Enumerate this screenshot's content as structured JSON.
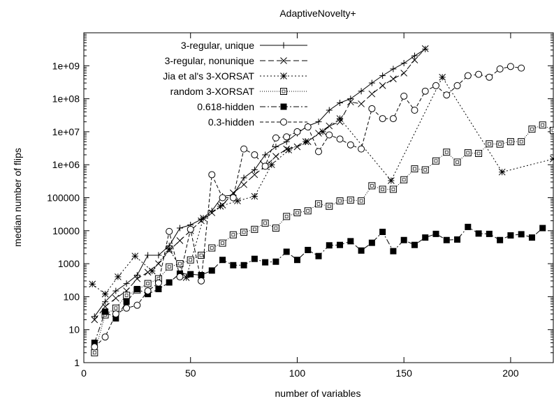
{
  "chart_data": {
    "type": "line",
    "title": "AdaptiveNovelty+",
    "xlabel": "number of variables",
    "ylabel": "median number of flips",
    "xlim": [
      0,
      220
    ],
    "ylim": [
      1,
      10000000000
    ],
    "yscale": "log",
    "grid": false,
    "legend_position": "top-left",
    "x_ticks": [
      0,
      50,
      100,
      150,
      200
    ],
    "x_tick_labels": [
      "0",
      "50",
      "100",
      "150",
      "200"
    ],
    "y_ticks": [
      1,
      10,
      100,
      1000,
      10000,
      100000,
      1000000,
      10000000,
      100000000,
      1000000000
    ],
    "y_tick_labels": [
      "1",
      "10",
      "100",
      "1000",
      "10000",
      "100000",
      "1e+06",
      "1e+07",
      "1e+08",
      "1e+09"
    ],
    "series": [
      {
        "name": "3-regular, unique",
        "marker": "plus",
        "dash": "",
        "points": [
          [
            5,
            25
          ],
          [
            10,
            70
          ],
          [
            15,
            150
          ],
          [
            20,
            250
          ],
          [
            25,
            450
          ],
          [
            30,
            1800
          ],
          [
            35,
            1800
          ],
          [
            40,
            3500
          ],
          [
            45,
            12000
          ],
          [
            50,
            15000
          ],
          [
            55,
            22000
          ],
          [
            60,
            40000
          ],
          [
            65,
            110000
          ],
          [
            70,
            120000
          ],
          [
            75,
            400000
          ],
          [
            80,
            700000
          ],
          [
            85,
            2000000
          ],
          [
            90,
            3500000
          ],
          [
            95,
            5000000
          ],
          [
            100,
            9000000
          ],
          [
            105,
            15000000
          ],
          [
            110,
            20000000
          ],
          [
            115,
            45000000
          ],
          [
            120,
            75000000
          ],
          [
            125,
            100000000
          ],
          [
            130,
            170000000
          ],
          [
            135,
            300000000
          ],
          [
            140,
            500000000
          ],
          [
            145,
            800000000
          ],
          [
            150,
            1200000000
          ],
          [
            155,
            2000000000
          ],
          [
            160,
            3200000000
          ]
        ]
      },
      {
        "name": "3-regular, nonunique",
        "marker": "cross",
        "dash": "8,4",
        "points": [
          [
            5,
            20
          ],
          [
            10,
            50
          ],
          [
            15,
            90
          ],
          [
            20,
            150
          ],
          [
            25,
            350
          ],
          [
            30,
            550
          ],
          [
            35,
            1000
          ],
          [
            40,
            2500
          ],
          [
            45,
            5000
          ],
          [
            50,
            10000
          ],
          [
            55,
            20000
          ],
          [
            60,
            35000
          ],
          [
            65,
            60000
          ],
          [
            70,
            140000
          ],
          [
            75,
            250000
          ],
          [
            80,
            500000
          ],
          [
            85,
            900000
          ],
          [
            90,
            1800000
          ],
          [
            95,
            3000000
          ],
          [
            100,
            3500000
          ],
          [
            105,
            5000000
          ],
          [
            110,
            9000000
          ],
          [
            115,
            15000000
          ],
          [
            120,
            20000000
          ],
          [
            125,
            80000000
          ],
          [
            130,
            70000000
          ],
          [
            135,
            140000000
          ],
          [
            140,
            250000000
          ],
          [
            145,
            400000000
          ],
          [
            150,
            600000000
          ],
          [
            155,
            1500000000
          ],
          [
            160,
            3300000000
          ]
        ]
      },
      {
        "name": "Jia et al's 3-XORSAT",
        "marker": "star",
        "dash": "2,3",
        "points": [
          [
            4,
            240
          ],
          [
            10,
            120
          ],
          [
            16,
            400
          ],
          [
            24,
            1700
          ],
          [
            32,
            600
          ],
          [
            40,
            2800
          ],
          [
            48,
            380
          ],
          [
            56,
            24000
          ],
          [
            64,
            55000
          ],
          [
            72,
            80000
          ],
          [
            80,
            110000
          ],
          [
            88,
            1000000
          ],
          [
            96,
            2800000
          ],
          [
            104,
            5000000
          ],
          [
            112,
            10000000
          ],
          [
            120,
            25000000
          ],
          [
            144,
            330000
          ],
          [
            168,
            450000000
          ],
          [
            196,
            600000
          ],
          [
            220,
            1500000
          ]
        ]
      },
      {
        "name": "random 3-XORSAT",
        "marker": "box",
        "dash": "1,2",
        "points": [
          [
            5,
            2
          ],
          [
            10,
            28
          ],
          [
            15,
            45
          ],
          [
            20,
            110
          ],
          [
            25,
            160
          ],
          [
            30,
            250
          ],
          [
            35,
            350
          ],
          [
            40,
            800
          ],
          [
            45,
            1000
          ],
          [
            50,
            1300
          ],
          [
            55,
            1800
          ],
          [
            60,
            3000
          ],
          [
            65,
            4200
          ],
          [
            70,
            7500
          ],
          [
            75,
            9000
          ],
          [
            80,
            11000
          ],
          [
            85,
            17000
          ],
          [
            90,
            12000
          ],
          [
            95,
            27000
          ],
          [
            100,
            35000
          ],
          [
            105,
            40000
          ],
          [
            110,
            65000
          ],
          [
            115,
            55000
          ],
          [
            120,
            80000
          ],
          [
            125,
            85000
          ],
          [
            130,
            80000
          ],
          [
            135,
            230000
          ],
          [
            140,
            180000
          ],
          [
            145,
            180000
          ],
          [
            150,
            350000
          ],
          [
            155,
            750000
          ],
          [
            160,
            700000
          ],
          [
            165,
            1300000
          ],
          [
            170,
            2400000
          ],
          [
            175,
            1200000
          ],
          [
            180,
            2300000
          ],
          [
            185,
            2200000
          ],
          [
            190,
            4300000
          ],
          [
            195,
            4200000
          ],
          [
            200,
            5000000
          ],
          [
            205,
            5000000
          ],
          [
            210,
            12000000
          ],
          [
            215,
            16000000
          ],
          [
            220,
            11000000
          ]
        ]
      },
      {
        "name": "0.618-hidden",
        "marker": "filledbox",
        "dash": "8,3,2,3",
        "points": [
          [
            5,
            4
          ],
          [
            10,
            35
          ],
          [
            15,
            22
          ],
          [
            20,
            70
          ],
          [
            25,
            170
          ],
          [
            30,
            120
          ],
          [
            35,
            170
          ],
          [
            40,
            270
          ],
          [
            45,
            500
          ],
          [
            50,
            480
          ],
          [
            55,
            450
          ],
          [
            60,
            620
          ],
          [
            65,
            1300
          ],
          [
            70,
            900
          ],
          [
            75,
            900
          ],
          [
            80,
            1400
          ],
          [
            85,
            1100
          ],
          [
            90,
            1150
          ],
          [
            95,
            2300
          ],
          [
            100,
            1300
          ],
          [
            105,
            2600
          ],
          [
            110,
            1700
          ],
          [
            115,
            3600
          ],
          [
            120,
            3700
          ],
          [
            125,
            4800
          ],
          [
            130,
            2500
          ],
          [
            135,
            4300
          ],
          [
            140,
            9200
          ],
          [
            145,
            2400
          ],
          [
            150,
            5200
          ],
          [
            155,
            3700
          ],
          [
            160,
            6200
          ],
          [
            165,
            8000
          ],
          [
            170,
            5200
          ],
          [
            175,
            5400
          ],
          [
            180,
            13000
          ],
          [
            185,
            8200
          ],
          [
            190,
            8000
          ],
          [
            195,
            5200
          ],
          [
            200,
            7200
          ],
          [
            205,
            7800
          ],
          [
            210,
            6200
          ],
          [
            215,
            12000
          ]
        ]
      },
      {
        "name": "0.3-hidden",
        "marker": "circle",
        "dash": "5,3",
        "points": [
          [
            5,
            3
          ],
          [
            10,
            6
          ],
          [
            15,
            30
          ],
          [
            20,
            45
          ],
          [
            25,
            55
          ],
          [
            30,
            150
          ],
          [
            35,
            260
          ],
          [
            40,
            9500
          ],
          [
            45,
            400
          ],
          [
            50,
            11000
          ],
          [
            55,
            300
          ],
          [
            60,
            500000
          ],
          [
            65,
            100000
          ],
          [
            70,
            100000
          ],
          [
            75,
            3000000
          ],
          [
            80,
            2000000
          ],
          [
            85,
            900000
          ],
          [
            90,
            6500000
          ],
          [
            95,
            7000000
          ],
          [
            100,
            10000000
          ],
          [
            105,
            14000000
          ],
          [
            110,
            2500000
          ],
          [
            115,
            8000000
          ],
          [
            120,
            6000000
          ],
          [
            125,
            4000000
          ],
          [
            130,
            3000000
          ],
          [
            135,
            50000000
          ],
          [
            140,
            25000000
          ],
          [
            145,
            25000000
          ],
          [
            150,
            120000000
          ],
          [
            155,
            45000000
          ],
          [
            160,
            170000000
          ],
          [
            165,
            250000000
          ],
          [
            170,
            130000000
          ],
          [
            175,
            250000000
          ],
          [
            180,
            500000000
          ],
          [
            185,
            550000000
          ],
          [
            190,
            450000000
          ],
          [
            195,
            800000000
          ],
          [
            200,
            950000000
          ],
          [
            205,
            850000000
          ]
        ]
      }
    ]
  }
}
